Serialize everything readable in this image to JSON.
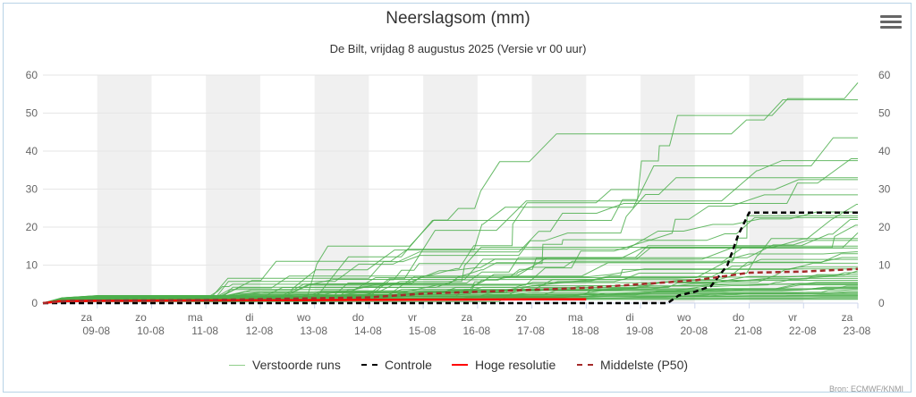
{
  "title": "Neerslagsom (mm)",
  "subtitle": "De Bilt, vrijdag 8 augustus 2025 (Versie vr 00 uur)",
  "credit": "Bron: ECMWF/KNMI",
  "menu_icon": "hamburger-menu-icon",
  "legend": [
    {
      "label": "Verstoorde runs",
      "color": "#8fce8a",
      "style": "solid"
    },
    {
      "label": "Controle",
      "color": "#000000",
      "style": "dashed"
    },
    {
      "label": "Hoge resolutie",
      "color": "#ff0000",
      "style": "solid"
    },
    {
      "label": "Middelste (P50)",
      "color": "#a52a2a",
      "style": "dashed"
    }
  ],
  "chart_data": {
    "type": "line",
    "title": "Neerslagsom (mm)",
    "subtitle": "De Bilt, vrijdag 8 augustus 2025 (Versie vr 00 uur)",
    "x_unit": "days since 2025-08-08 00:00",
    "x_range": [
      0,
      15
    ],
    "ylim": [
      0,
      60
    ],
    "y_ticks": [
      0,
      10,
      20,
      30,
      40,
      50,
      60
    ],
    "x_ticks": [
      {
        "day": "za",
        "date": "09-08"
      },
      {
        "day": "zo",
        "date": "10-08"
      },
      {
        "day": "ma",
        "date": "11-08"
      },
      {
        "day": "di",
        "date": "12-08"
      },
      {
        "day": "wo",
        "date": "13-08"
      },
      {
        "day": "do",
        "date": "14-08"
      },
      {
        "day": "vr",
        "date": "15-08"
      },
      {
        "day": "za",
        "date": "16-08"
      },
      {
        "day": "zo",
        "date": "17-08"
      },
      {
        "day": "ma",
        "date": "18-08"
      },
      {
        "day": "di",
        "date": "19-08"
      },
      {
        "day": "wo",
        "date": "20-08"
      },
      {
        "day": "do",
        "date": "21-08"
      },
      {
        "day": "vr",
        "date": "22-08"
      },
      {
        "day": "za",
        "date": "23-08"
      }
    ],
    "weekend_bands": [
      [
        1,
        2
      ],
      [
        3,
        4
      ],
      [
        5,
        6
      ],
      [
        7,
        8
      ],
      [
        9,
        10
      ],
      [
        11,
        12
      ],
      [
        13,
        14
      ]
    ],
    "grid": true,
    "legend_position": "bottom",
    "series": [
      {
        "name": "Controle",
        "color": "#000000",
        "dash": true,
        "points": [
          [
            0,
            0
          ],
          [
            10,
            0
          ],
          [
            11.5,
            0
          ],
          [
            11.7,
            2
          ],
          [
            12,
            3
          ],
          [
            12.3,
            4.5
          ],
          [
            12.6,
            10
          ],
          [
            12.8,
            18
          ],
          [
            13,
            23.8
          ],
          [
            15,
            23.8
          ]
        ]
      },
      {
        "name": "Hoge resolutie",
        "color": "#ff0000",
        "dash": false,
        "points": [
          [
            0,
            0
          ],
          [
            0.3,
            0.5
          ],
          [
            1,
            0.6
          ],
          [
            5,
            0.8
          ],
          [
            9,
            1
          ],
          [
            10,
            1
          ]
        ]
      },
      {
        "name": "Middelste (P50)",
        "color": "#a52a2a",
        "dash": true,
        "points": [
          [
            0,
            0
          ],
          [
            0.5,
            0.6
          ],
          [
            3,
            0.8
          ],
          [
            6,
            1.5
          ],
          [
            7,
            2.5
          ],
          [
            8,
            3
          ],
          [
            9,
            3.5
          ],
          [
            10,
            4
          ],
          [
            11,
            5
          ],
          [
            12,
            6
          ],
          [
            12.5,
            7
          ],
          [
            13,
            8
          ],
          [
            14,
            8.3
          ],
          [
            15,
            9
          ]
        ]
      }
    ],
    "perturbed_runs": {
      "name": "Verstoorde runs",
      "color": "#4cae4c",
      "count": 50,
      "final_values": [
        58,
        53.5,
        43.5,
        38,
        37.5,
        33,
        32.5,
        28.5,
        26,
        24,
        23,
        22.5,
        22,
        20.5,
        18.5,
        17,
        16.5,
        15,
        14.5,
        13.5,
        13,
        12,
        11.5,
        10.5,
        9.5,
        9,
        8.5,
        8,
        7.5,
        7,
        6.5,
        6,
        5.5,
        5.2,
        5,
        4.8,
        4.5,
        4.2,
        4,
        3.8,
        3.5,
        3,
        2.8,
        2.5,
        2.2,
        2,
        1.8,
        1.5,
        1.2,
        1
      ]
    }
  }
}
